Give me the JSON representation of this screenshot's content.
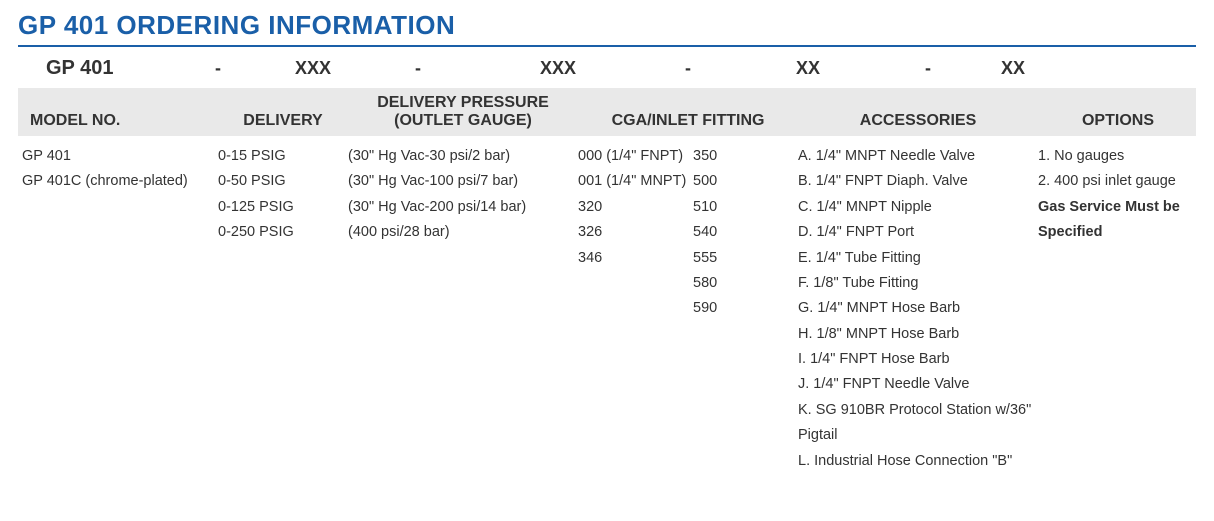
{
  "title": "GP 401 ORDERING INFORMATION",
  "colors": {
    "accent": "#1a5fa8",
    "header_bg": "#e9e9e9",
    "text": "#333333",
    "background": "#ffffff"
  },
  "pattern": {
    "model": "GP 401",
    "d1": "-",
    "p1": "XXX",
    "d2": "-",
    "p2": "XXX",
    "d3": "-",
    "p3": "XX",
    "d4": "-",
    "p4": "XX"
  },
  "headers": {
    "model_no": "MODEL NO.",
    "delivery": "DELIVERY",
    "delivery_pressure_top": "DELIVERY PRESSURE",
    "outlet_gauge": "(OUTLET GAUGE)",
    "cga": "CGA/INLET FITTING",
    "accessories": "ACCESSORIES",
    "options": "OPTIONS"
  },
  "columns": {
    "model_no": [
      "GP 401",
      "GP 401C (chrome-plated)"
    ],
    "delivery": [
      "0-15 PSIG",
      "0-50 PSIG",
      "0-125 PSIG",
      "0-250 PSIG"
    ],
    "outlet_gauge": [
      "(30\" Hg Vac-30 psi/2 bar)",
      "(30\" Hg Vac-100 psi/7 bar)",
      "(30\" Hg Vac-200 psi/14 bar)",
      "(400 psi/28 bar)"
    ],
    "cga_left": [
      "000 (1/4\" FNPT)",
      "001 (1/4\" MNPT)",
      "320",
      "326",
      "346"
    ],
    "cga_right": [
      "350",
      "500",
      "510",
      "540",
      "555",
      "580",
      "590"
    ],
    "accessories": [
      "A. 1/4\" MNPT Needle Valve",
      "B. 1/4\" FNPT Diaph. Valve",
      "C. 1/4\" MNPT Nipple",
      "D. 1/4\" FNPT Port",
      "E. 1/4\" Tube Fitting",
      "F. 1/8\" Tube Fitting",
      "G. 1/4\" MNPT Hose Barb",
      "H. 1/8\" MNPT Hose Barb",
      "I. 1/4\" FNPT Hose Barb",
      "J. 1/4\" FNPT Needle Valve",
      "K. SG 910BR Protocol Station w/36\" Pigtail",
      "L. Industrial Hose Connection \"B\""
    ],
    "options": [
      "1. No gauges",
      "2. 400 psi inlet gauge"
    ],
    "options_note_line1": "Gas Service Must be",
    "options_note_line2": "Specified"
  }
}
